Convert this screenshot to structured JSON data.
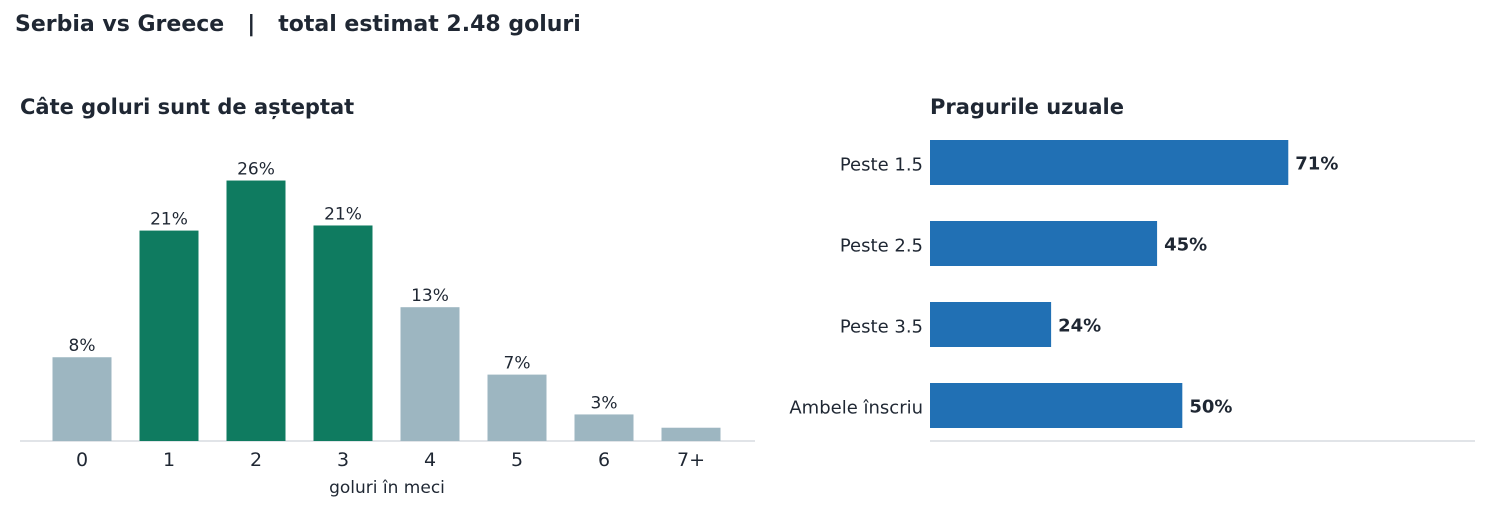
{
  "page": {
    "title": "Serbia vs Greece   |   total estimat 2.48 goluri"
  },
  "colors": {
    "highlight_bar": "#0f7b60",
    "muted_bar": "#9db6c1",
    "threshold_bar": "#2170b4",
    "axis_line": "#e1e4e8",
    "text": "#1f2733"
  },
  "chart_data": [
    {
      "type": "bar",
      "title": "Câte goluri sunt de așteptat",
      "xlabel": "goluri în meci",
      "ylabel": "",
      "categories": [
        "0",
        "1",
        "2",
        "3",
        "4",
        "5",
        "6",
        "7+"
      ],
      "values": [
        8.2,
        20.6,
        25.5,
        21.1,
        13.1,
        6.5,
        2.6,
        1.3
      ],
      "data_labels": [
        "8%",
        "21%",
        "26%",
        "21%",
        "13%",
        "7%",
        "3%",
        ""
      ],
      "highlighted": [
        false,
        true,
        true,
        true,
        false,
        false,
        false,
        false
      ],
      "ylim": [
        0,
        28
      ],
      "grid": false
    },
    {
      "type": "bar",
      "orientation": "horizontal",
      "title": "Pragurile uzuale",
      "categories": [
        "Peste 1.5",
        "Peste 2.5",
        "Peste 3.5",
        "Ambele înscriu"
      ],
      "values": [
        71,
        45,
        24,
        50
      ],
      "data_labels": [
        "71%",
        "45%",
        "24%",
        "50%"
      ],
      "xlim": [
        0,
        108
      ],
      "grid": false
    }
  ]
}
